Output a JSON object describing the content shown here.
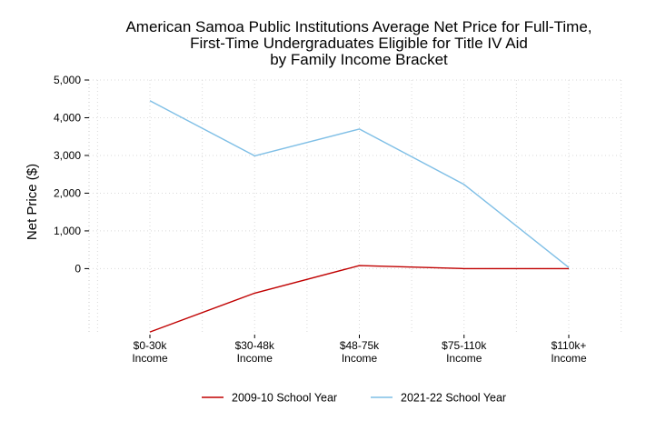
{
  "chart_data": {
    "type": "line",
    "title_lines": [
      "American Samoa Public Institutions Average Net Price for Full-Time,",
      "First-Time Undergraduates Eligible for Title IV Aid",
      "by Family Income Bracket"
    ],
    "ylabel": "Net Price ($)",
    "xlabel": "",
    "categories": [
      [
        "$0-30k",
        "Income"
      ],
      [
        "$30-48k",
        "Income"
      ],
      [
        "$48-75k",
        "Income"
      ],
      [
        "$75-110k",
        "Income"
      ],
      [
        "$110k+",
        "Income"
      ]
    ],
    "y_ticks": [
      0,
      1000,
      2000,
      3000,
      4000,
      5000
    ],
    "y_tick_labels": [
      "0",
      "1,000",
      "2,000",
      "3,000",
      "4,000",
      "5,000"
    ],
    "ylim": [
      -1750,
      5000
    ],
    "grid": true,
    "legend_position": "bottom",
    "series": [
      {
        "name": "2009-10 School Year",
        "color": "#c00000",
        "values": [
          -1680,
          -650,
          80,
          0,
          0
        ]
      },
      {
        "name": "2021-22 School Year",
        "color": "#7fbfe6",
        "values": [
          4450,
          2990,
          3700,
          2230,
          30
        ]
      }
    ]
  }
}
